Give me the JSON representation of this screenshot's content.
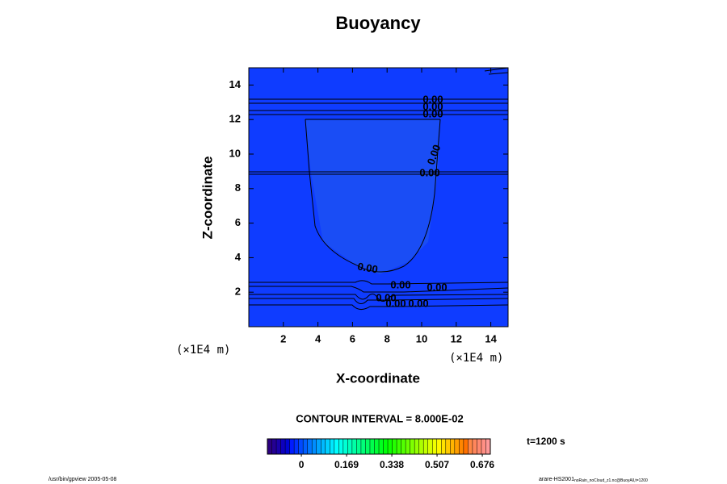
{
  "chart_data": {
    "type": "contour",
    "title": "Buoyancy",
    "x_label": "X-coordinate",
    "y_label": "Z-coordinate",
    "x_unit": "(×1E4 m)",
    "y_unit": "(×1E4 m)",
    "xlim": [
      0,
      15
    ],
    "ylim": [
      0,
      15
    ],
    "xticks": [
      2,
      4,
      6,
      8,
      10,
      12,
      14
    ],
    "yticks": [
      2,
      4,
      6,
      8,
      10,
      12,
      14
    ],
    "contour_labels": [
      {
        "value": 0,
        "label": "0.00"
      },
      {
        "value": 0,
        "label": "0.00"
      },
      {
        "value": 0,
        "label": "0.00"
      },
      {
        "value": 0,
        "label": "0.00"
      },
      {
        "value": 0,
        "label": "0.00"
      },
      {
        "value": 0,
        "label": "0.00"
      },
      {
        "value": 0,
        "label": "0.00"
      },
      {
        "value": 0,
        "label": "0.00"
      },
      {
        "value": 0,
        "label": "0.00"
      },
      {
        "value": 0,
        "label": "0.00"
      },
      {
        "value": 0,
        "label": "0.00"
      }
    ],
    "contour_interval": "CONTOUR INTERVAL = 8.000E-02",
    "time_label": "t=1200 s",
    "colorbar": {
      "lim": [
        -0.127,
        0.706
      ],
      "ticks": [
        0,
        0.169,
        0.338,
        0.507,
        0.676
      ]
    },
    "footer_left": "/usr/bin/gpview 2005-05-08",
    "footer_right": "arare-HS2001",
    "footer_right_sub": "noRain_noCloud_z1.nc@BuoyAll,t=1200"
  }
}
